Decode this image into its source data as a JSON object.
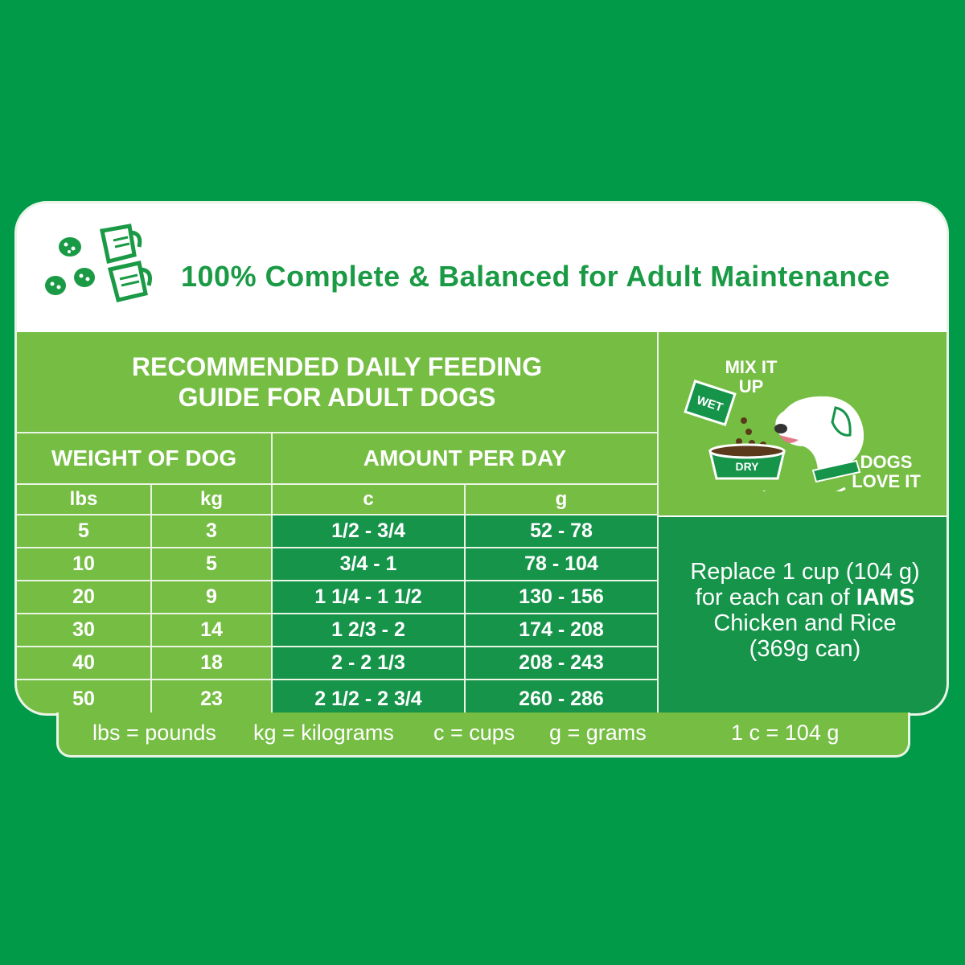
{
  "header": {
    "title": "100% Complete & Balanced for Adult Maintenance",
    "icon": "kibble-and-measuring-cup-icon"
  },
  "table": {
    "title_line1": "RECOMMENDED DAILY FEEDING",
    "title_line2": "GUIDE FOR ADULT DOGS",
    "group_weight": "WEIGHT OF DOG",
    "group_amount": "AMOUNT PER DAY",
    "columns": [
      "lbs",
      "kg",
      "c",
      "g"
    ],
    "rows": [
      [
        "5",
        "3",
        "1/2 - 3/4",
        "52 - 78"
      ],
      [
        "10",
        "5",
        "3/4 - 1",
        "78 - 104"
      ],
      [
        "20",
        "9",
        "1  1/4 - 1  1/2",
        "130 - 156"
      ],
      [
        "30",
        "14",
        "1  2/3 - 2",
        "174 - 208"
      ],
      [
        "40",
        "18",
        "2 - 2  1/3",
        "208 - 243"
      ],
      [
        "50",
        "23",
        "2  1/2 - 2  3/4",
        "260 - 286"
      ]
    ]
  },
  "side": {
    "mix_label_line1": "MIX IT",
    "mix_label_line2": "UP",
    "wet_label": "WET",
    "dry_label": "DRY",
    "dogs_label_line1": "DOGS",
    "dogs_label_line2": "LOVE IT",
    "note_line1": "Replace 1 cup (104 g)",
    "note_line2_prefix": "for each can of ",
    "note_brand": "IAMS",
    "note_line3": "Chicken and Rice",
    "note_line4": "(369g can)"
  },
  "footer": {
    "items": [
      "lbs = pounds",
      "kg = kilograms",
      "c = cups",
      "g = grams",
      "1 c = 104 g"
    ]
  },
  "colors": {
    "background": "#009a49",
    "light_green": "#76bd43",
    "dark_green": "#15944a",
    "title_green": "#1a9a45"
  }
}
